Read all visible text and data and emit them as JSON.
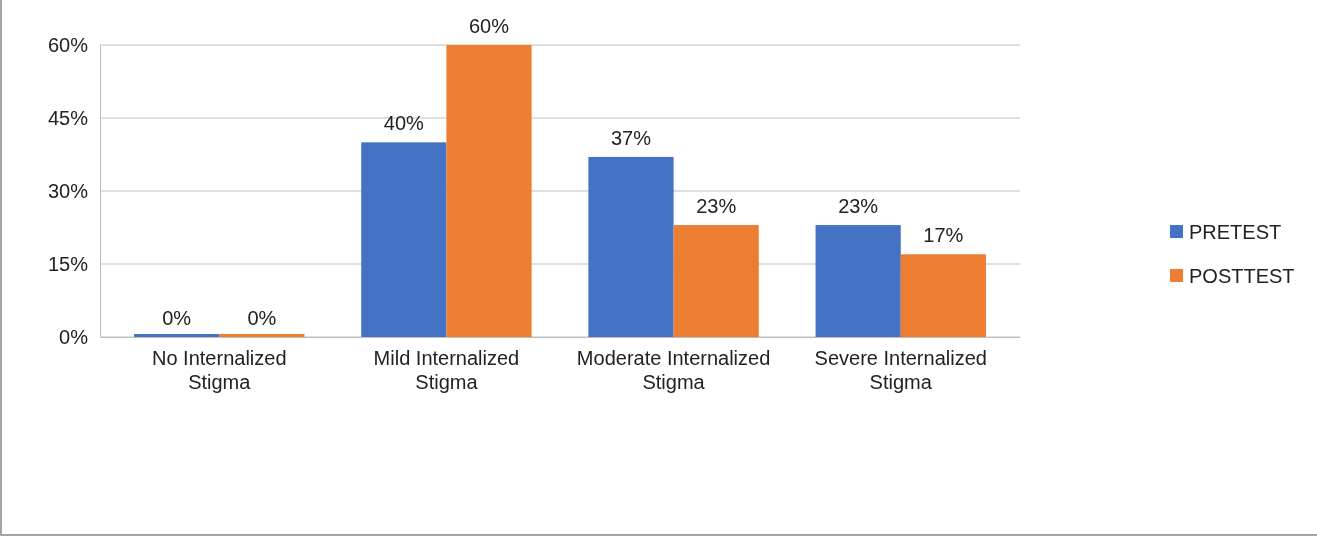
{
  "chart_data": {
    "type": "bar",
    "categories": [
      "No Internalized Stigma",
      "Mild Internalized Stigma",
      "Moderate Internalized Stigma",
      "Severe Internalized Stigma"
    ],
    "series": [
      {
        "name": "PRETEST",
        "color": "#4472c4",
        "values": [
          0,
          40,
          37,
          23
        ],
        "value_labels": [
          "0%",
          "40%",
          "37%",
          "23%"
        ]
      },
      {
        "name": "POSTTEST",
        "color": "#ed7d31",
        "values": [
          0,
          60,
          23,
          17
        ],
        "value_labels": [
          "0%",
          "60%",
          "23%",
          "17%"
        ]
      }
    ],
    "ylim": [
      0,
      60
    ],
    "yticks": [
      {
        "value": 0,
        "label": "0%"
      },
      {
        "value": 15,
        "label": "15%"
      },
      {
        "value": 30,
        "label": "30%"
      },
      {
        "value": 45,
        "label": "45%"
      },
      {
        "value": 60,
        "label": "60%"
      }
    ],
    "grid": "y",
    "legend": "right"
  }
}
